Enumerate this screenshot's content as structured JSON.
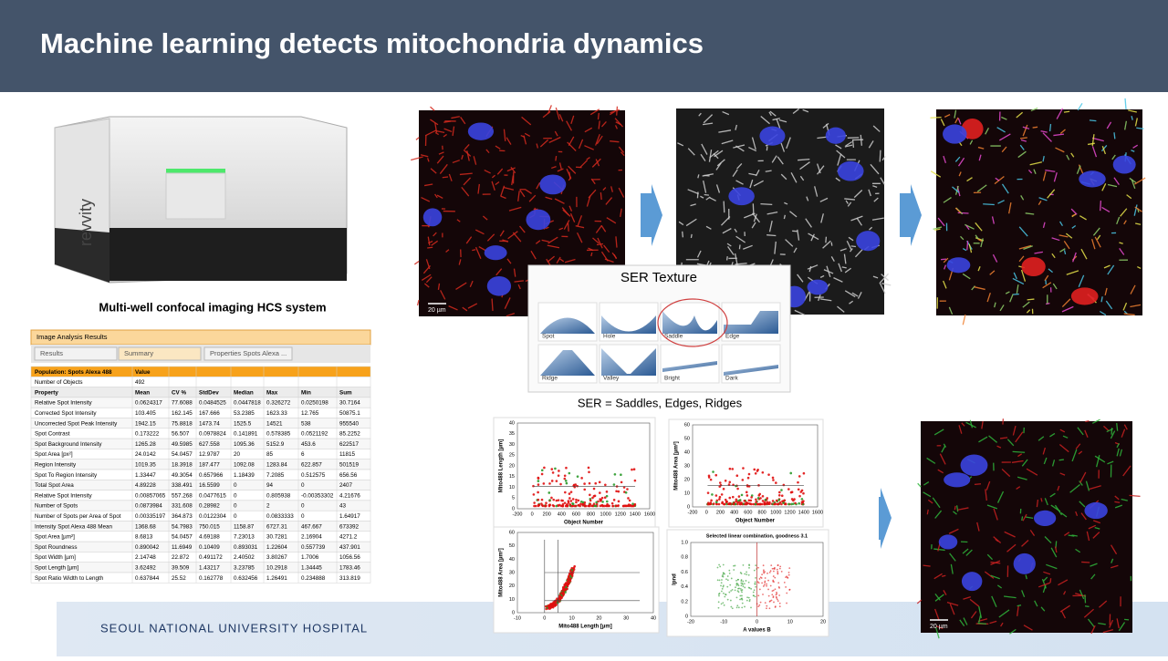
{
  "header": {
    "title": "Machine learning detects mitochondria dynamics"
  },
  "instrument": {
    "brand": "revvity",
    "caption": "Multi-well confocal imaging HCS system"
  },
  "table": {
    "window_title": "Image Analysis Results",
    "tabs": [
      "Results",
      "Summary",
      "Properties Spots Alexa ..."
    ],
    "population": [
      "Population: Spots Alexa 488",
      "Value"
    ],
    "objects": [
      "Number of Objects",
      "492"
    ],
    "columns": [
      "Property",
      "Mean",
      "CV %",
      "StdDev",
      "Median",
      "Max",
      "Min",
      "Sum"
    ],
    "rows": [
      [
        "Relative Spot Intensity",
        "0.0624317",
        "77.6088",
        "0.0484525",
        "0.0447818",
        "0.326272",
        "0.0250198",
        "30.7164"
      ],
      [
        "Corrected Spot Intensity",
        "103.405",
        "162.145",
        "167.666",
        "53.2385",
        "1623.33",
        "12.765",
        "50875.1"
      ],
      [
        "Uncorrected Spot Peak Intensity",
        "1942.15",
        "75.8818",
        "1473.74",
        "1525.5",
        "14521",
        "538",
        "955540"
      ],
      [
        "Spot Contrast",
        "0.173222",
        "56.507",
        "0.0978824",
        "0.141891",
        "0.578385",
        "0.0521192",
        "85.2252"
      ],
      [
        "Spot Background Intensity",
        "1265.28",
        "49.5985",
        "627.558",
        "1095.36",
        "5152.9",
        "453.6",
        "622517"
      ],
      [
        "Spot Area [px²]",
        "24.0142",
        "54.0457",
        "12.9787",
        "20",
        "85",
        "6",
        "11815"
      ],
      [
        "Region Intensity",
        "1019.35",
        "18.3918",
        "187.477",
        "1092.08",
        "1283.84",
        "622.857",
        "501519"
      ],
      [
        "Spot To Region Intensity",
        "1.33447",
        "49.3054",
        "0.657966",
        "1.18439",
        "7.2085",
        "0.512575",
        "656.56"
      ],
      [
        "Total Spot Area",
        "4.89228",
        "338.491",
        "16.5599",
        "0",
        "94",
        "0",
        "2407"
      ],
      [
        "Relative Spot Intensity",
        "0.00857065",
        "557.268",
        "0.0477615",
        "0",
        "0.805938",
        "-0.00353302",
        "4.21676"
      ],
      [
        "Number of Spots",
        "0.0873984",
        "331.608",
        "0.28982",
        "0",
        "2",
        "0",
        "43"
      ],
      [
        "Number of Spots per Area of Spot",
        "0.00335197",
        "364.873",
        "0.0122304",
        "0",
        "0.0833333",
        "0",
        "1.64917"
      ],
      [
        "Intensity Spot Alexa 488 Mean",
        "1368.68",
        "54.7983",
        "750.015",
        "1158.87",
        "6727.31",
        "467.667",
        "673392"
      ],
      [
        "Spot Area [µm²]",
        "8.6813",
        "54.0457",
        "4.69188",
        "7.23013",
        "30.7281",
        "2.16904",
        "4271.2"
      ],
      [
        "Spot Roundness",
        "0.890042",
        "11.6949",
        "0.10409",
        "0.893031",
        "1.22604",
        "0.557739",
        "437.901"
      ],
      [
        "Spot Width [µm]",
        "2.14748",
        "22.872",
        "0.491172",
        "2.40502",
        "3.80267",
        "1.7006",
        "1056.56"
      ],
      [
        "Spot Length [µm]",
        "3.62492",
        "39.509",
        "1.43217",
        "3.23785",
        "10.2918",
        "1.34445",
        "1783.46"
      ],
      [
        "Spot Ratio Width to Length",
        "0.637844",
        "25.52",
        "0.162778",
        "0.632456",
        "1.26491",
        "0.234888",
        "313.819"
      ]
    ]
  },
  "images": {
    "scale_bar": "20 µm"
  },
  "ser": {
    "title": "SER Texture",
    "shapes": [
      "Spot",
      "Hole",
      "Saddle",
      "Edge",
      "Ridge",
      "Valley",
      "Bright",
      "Dark"
    ],
    "caption": "SER = Saddles, Edges, Ridges"
  },
  "plots": [
    {
      "ylabel": "Mito488 Length [µm]",
      "xlabel": "Object Number",
      "yticks": [
        "0",
        "5",
        "10",
        "15",
        "20",
        "25",
        "30",
        "35",
        "40"
      ],
      "xticks": [
        "-200",
        "0",
        "200",
        "400",
        "600",
        "800",
        "1000",
        "1200",
        "1400",
        "1600"
      ]
    },
    {
      "ylabel": "Mito488 Area [µm²]",
      "xlabel": "Object Number",
      "yticks": [
        "0",
        "10",
        "20",
        "30",
        "40",
        "50",
        "60"
      ],
      "xticks": [
        "-200",
        "0",
        "200",
        "400",
        "600",
        "800",
        "1000",
        "1200",
        "1400",
        "1600"
      ]
    },
    {
      "ylabel": "Mito488 Area [µm²]",
      "xlabel": "Mito488 Length [µm]",
      "yticks": [
        "0",
        "10",
        "20",
        "30",
        "40",
        "50",
        "60"
      ],
      "xticks": [
        "-10",
        "0",
        "10",
        "20",
        "30",
        "40"
      ]
    },
    {
      "title": "Selected linear combination, goodness 3.1",
      "ylabel": "lpnd",
      "xlabel": "A values B",
      "yticks": [
        "0",
        "0.2",
        "0.4",
        "0.6",
        "0.8",
        "1.0"
      ],
      "xticks": [
        "-20",
        "-10",
        "0",
        "10",
        "20"
      ]
    }
  ],
  "footer": {
    "institution": "SEOUL NATIONAL UNIVERSITY HOSPITAL"
  }
}
